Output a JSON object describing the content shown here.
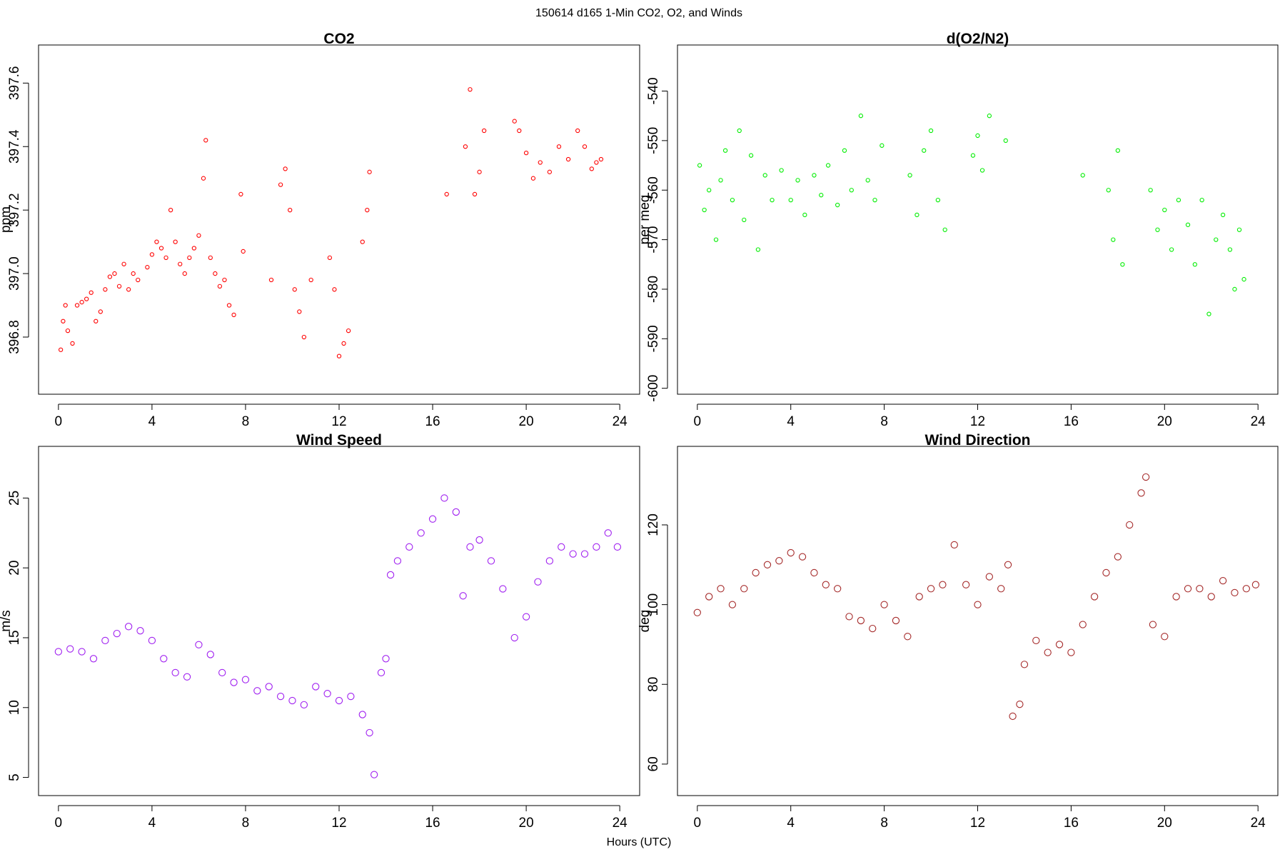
{
  "title": "150614   d165   1-Min CO2, O2, and Winds",
  "xlabel": "Hours (UTC)",
  "chart_data": [
    {
      "type": "scatter",
      "title": "CO2",
      "ylabel": "ppm",
      "color": "#ff0000",
      "xlim": [
        -0.85,
        24.85
      ],
      "xticks": [
        0,
        4,
        8,
        12,
        16,
        20,
        24
      ],
      "ylim": [
        396.62,
        397.72
      ],
      "yticks": [
        396.8,
        {
          "value": 397,
          "label": "397.0"
        },
        397.2,
        397.4,
        397.6
      ],
      "x": [
        0.1,
        0.2,
        0.3,
        0.4,
        0.6,
        0.8,
        1.0,
        1.2,
        1.4,
        1.6,
        1.8,
        2.0,
        2.2,
        2.4,
        2.6,
        2.8,
        3.0,
        3.2,
        3.4,
        3.8,
        4.0,
        4.2,
        4.4,
        4.6,
        4.8,
        5.0,
        5.2,
        5.4,
        5.6,
        5.8,
        6.0,
        6.2,
        6.3,
        6.5,
        6.7,
        6.9,
        7.1,
        7.3,
        7.5,
        7.8,
        7.9,
        9.1,
        9.5,
        9.7,
        9.9,
        10.1,
        10.3,
        10.5,
        10.8,
        11.6,
        11.8,
        12.0,
        12.2,
        12.4,
        13.0,
        13.2,
        13.3,
        16.6,
        17.4,
        17.6,
        17.8,
        18.0,
        18.2,
        19.5,
        19.7,
        20.0,
        20.3,
        20.6,
        21.0,
        21.4,
        21.8,
        22.2,
        22.5,
        22.8,
        23.0,
        23.2
      ],
      "values": [
        396.76,
        396.85,
        396.9,
        396.82,
        396.78,
        396.9,
        396.91,
        396.92,
        396.94,
        396.85,
        396.88,
        396.95,
        396.99,
        397.0,
        396.96,
        397.03,
        396.95,
        397.0,
        396.98,
        397.02,
        397.06,
        397.1,
        397.08,
        397.05,
        397.2,
        397.1,
        397.03,
        397.0,
        397.05,
        397.08,
        397.12,
        397.3,
        397.42,
        397.05,
        397.0,
        396.96,
        396.98,
        396.9,
        396.87,
        397.25,
        397.07,
        396.98,
        397.28,
        397.33,
        397.2,
        396.95,
        396.88,
        396.8,
        396.98,
        397.05,
        396.95,
        396.74,
        396.78,
        396.82,
        397.1,
        397.2,
        397.32,
        397.25,
        397.4,
        397.58,
        397.25,
        397.32,
        397.45,
        397.48,
        397.45,
        397.38,
        397.3,
        397.35,
        397.32,
        397.4,
        397.36,
        397.45,
        397.4,
        397.33,
        397.35,
        397.36
      ]
    },
    {
      "type": "scatter",
      "title": "d(O2/N2)",
      "ylabel": "per meg",
      "color": "#00ee00",
      "xlim": [
        -0.85,
        24.85
      ],
      "xticks": [
        0,
        4,
        8,
        12,
        16,
        20,
        24
      ],
      "ylim": [
        -601.2,
        -530.7
      ],
      "yticks": [
        -600,
        -590,
        -580,
        -570,
        -560,
        -550,
        -540
      ],
      "x": [
        0.1,
        0.3,
        0.5,
        0.8,
        1.0,
        1.2,
        1.5,
        1.8,
        2.0,
        2.3,
        2.6,
        2.9,
        3.2,
        3.6,
        4.0,
        4.3,
        4.6,
        5.0,
        5.3,
        5.6,
        6.0,
        6.3,
        6.6,
        7.0,
        7.3,
        7.6,
        7.9,
        9.1,
        9.4,
        9.7,
        10.0,
        10.3,
        10.6,
        11.8,
        12.0,
        12.2,
        12.5,
        13.2,
        16.5,
        17.6,
        17.8,
        18.0,
        18.2,
        19.4,
        19.7,
        20.0,
        20.3,
        20.6,
        21.0,
        21.3,
        21.6,
        21.9,
        22.2,
        22.5,
        22.8,
        23.0,
        23.2,
        23.4
      ],
      "values": [
        -555,
        -564,
        -560,
        -570,
        -558,
        -552,
        -562,
        -548,
        -566,
        -553,
        -572,
        -557,
        -562,
        -556,
        -562,
        -558,
        -565,
        -557,
        -561,
        -555,
        -563,
        -552,
        -560,
        -545,
        -558,
        -562,
        -551,
        -557,
        -565,
        -552,
        -548,
        -562,
        -568,
        -553,
        -549,
        -556,
        -545,
        -550,
        -557,
        -560,
        -570,
        -552,
        -575,
        -560,
        -568,
        -564,
        -572,
        -562,
        -567,
        -575,
        -562,
        -585,
        -570,
        -565,
        -572,
        -580,
        -568,
        -578
      ]
    },
    {
      "type": "scatter",
      "title": "Wind Speed",
      "ylabel": "m/s",
      "color": "#a020f0",
      "xlim": [
        -0.85,
        24.85
      ],
      "xticks": [
        0,
        4,
        8,
        12,
        16,
        20,
        24
      ],
      "ylim": [
        3.7,
        28.7
      ],
      "yticks": [
        5,
        10,
        15,
        20,
        25
      ],
      "x": [
        0,
        0.5,
        1,
        1.5,
        2,
        2.5,
        3,
        3.5,
        4,
        4.5,
        5,
        5.5,
        6,
        6.5,
        7,
        7.5,
        8,
        8.5,
        9,
        9.5,
        10,
        10.5,
        11,
        11.5,
        12,
        12.5,
        13,
        13.3,
        13.5,
        13.8,
        14,
        14.2,
        14.5,
        15,
        15.5,
        16,
        16.5,
        17,
        17.3,
        17.6,
        18,
        18.5,
        19,
        19.5,
        20,
        20.5,
        21,
        21.5,
        22,
        22.5,
        23,
        23.5,
        23.9
      ],
      "values": [
        14,
        14.2,
        14,
        13.5,
        14.8,
        15.3,
        15.8,
        15.5,
        14.8,
        13.5,
        12.5,
        12.2,
        14.5,
        13.8,
        12.5,
        11.8,
        12,
        11.2,
        11.5,
        10.8,
        10.5,
        10.2,
        11.5,
        11,
        10.5,
        10.8,
        9.5,
        8.2,
        5.2,
        12.5,
        13.5,
        19.5,
        20.5,
        21.5,
        22.5,
        23.5,
        25,
        24,
        18,
        21.5,
        22,
        20.5,
        18.5,
        15,
        16.5,
        19,
        20.5,
        21.5,
        21,
        21,
        21.5,
        22.5,
        21.5
      ]
    },
    {
      "type": "scatter",
      "title": "Wind Direction",
      "ylabel": "deg",
      "color": "#a52a2a",
      "xlim": [
        -0.85,
        24.85
      ],
      "xticks": [
        0,
        4,
        8,
        12,
        16,
        20,
        24
      ],
      "ylim": [
        52.1,
        139.7
      ],
      "yticks": [
        60,
        80,
        100,
        120
      ],
      "x": [
        0,
        0.5,
        1,
        1.5,
        2,
        2.5,
        3,
        3.5,
        4,
        4.5,
        5,
        5.5,
        6,
        6.5,
        7,
        7.5,
        8,
        8.5,
        9,
        9.5,
        10,
        10.5,
        11,
        11.5,
        12,
        12.5,
        13,
        13.3,
        13.5,
        13.8,
        14,
        14.5,
        15,
        15.5,
        16,
        16.5,
        17,
        17.5,
        18,
        18.5,
        19,
        19.2,
        19.5,
        20,
        20.5,
        21,
        21.5,
        22,
        22.5,
        23,
        23.5,
        23.9
      ],
      "values": [
        98,
        102,
        104,
        100,
        104,
        108,
        110,
        111,
        113,
        112,
        108,
        105,
        104,
        97,
        96,
        94,
        100,
        96,
        92,
        102,
        104,
        105,
        115,
        105,
        100,
        107,
        104,
        110,
        72,
        75,
        85,
        91,
        88,
        90,
        88,
        95,
        102,
        108,
        112,
        120,
        128,
        132,
        95,
        92,
        102,
        104,
        104,
        102,
        106,
        103,
        104,
        105
      ]
    }
  ]
}
